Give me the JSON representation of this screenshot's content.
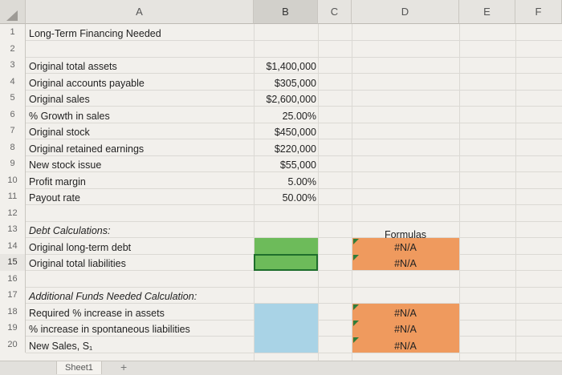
{
  "columns": [
    "A",
    "B",
    "C",
    "D",
    "E",
    "F"
  ],
  "rows": [
    "1",
    "2",
    "3",
    "4",
    "5",
    "6",
    "7",
    "8",
    "9",
    "10",
    "11",
    "12",
    "13",
    "14",
    "15",
    "16",
    "17",
    "18",
    "19",
    "20"
  ],
  "sheet": {
    "title": "Long-Term Financing Needed",
    "inputs": [
      {
        "label": "Original total assets",
        "value": "$1,400,000"
      },
      {
        "label": "Original accounts payable",
        "value": "$305,000"
      },
      {
        "label": "Original sales",
        "value": "$2,600,000"
      },
      {
        "label": "% Growth in sales",
        "value": "25.00%"
      },
      {
        "label": "Original stock",
        "value": "$450,000"
      },
      {
        "label": "Original retained earnings",
        "value": "$220,000"
      },
      {
        "label": "New stock issue",
        "value": "$55,000"
      },
      {
        "label": "Profit margin",
        "value": "5.00%"
      },
      {
        "label": "Payout rate",
        "value": "50.00%"
      }
    ],
    "debt_section": {
      "heading": "Debt Calculations:",
      "rows": [
        "Original long-term debt",
        "Original total liabilities"
      ],
      "formulas_header": "Formulas",
      "formulas": [
        "#N/A",
        "#N/A"
      ]
    },
    "afn_section": {
      "heading": "Additional Funds Needed Calculation:",
      "rows": [
        "Required % increase in assets",
        "% increase in spontaneous liabilities",
        "New Sales, S₁"
      ],
      "formulas": [
        "#N/A",
        "#N/A",
        "#N/A"
      ]
    }
  },
  "tabs": [
    {
      "label": "Sheet1"
    }
  ],
  "add_tab_label": "+",
  "colors": {
    "green": "#6dbb5a",
    "blue": "#a9d3e6",
    "orange": "#ef9a5e"
  }
}
